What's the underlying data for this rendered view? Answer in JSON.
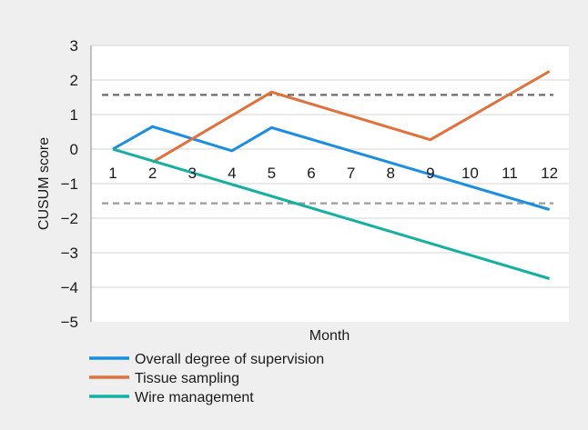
{
  "chart_data": {
    "type": "line",
    "xlabel": "Month",
    "ylabel": "CUSUM score",
    "x": [
      1,
      2,
      3,
      4,
      5,
      6,
      7,
      8,
      9,
      10,
      11,
      12
    ],
    "ylim": [
      -5,
      3
    ],
    "yticks": [
      3,
      2,
      1,
      0,
      -1,
      -2,
      -3,
      -4,
      -5
    ],
    "yticklabels": [
      "3",
      "2",
      "1",
      "0",
      "−1",
      "−2",
      "−3",
      "−4",
      "−5"
    ],
    "grid": true,
    "legend_position": "bottom-left",
    "series": [
      {
        "name": "Overall degree of supervision",
        "color": "#1a8ee0",
        "points": [
          [
            1,
            0
          ],
          [
            2,
            0.65
          ],
          [
            4,
            -0.05
          ],
          [
            5,
            0.62
          ],
          [
            12,
            -1.75
          ]
        ]
      },
      {
        "name": "Tissue sampling",
        "color": "#e2703a",
        "points": [
          [
            2,
            -0.38
          ],
          [
            5,
            1.65
          ],
          [
            9,
            0.27
          ],
          [
            12,
            2.25
          ]
        ]
      },
      {
        "name": "Wire management",
        "color": "#14b0a0",
        "points": [
          [
            1,
            0
          ],
          [
            12,
            -3.75
          ]
        ]
      }
    ],
    "reference_lines": [
      {
        "y": 1.57,
        "color": "#6b6b6b",
        "style": "dashed"
      },
      {
        "y": -1.57,
        "color": "#9a9a9a",
        "style": "dashed"
      }
    ]
  }
}
